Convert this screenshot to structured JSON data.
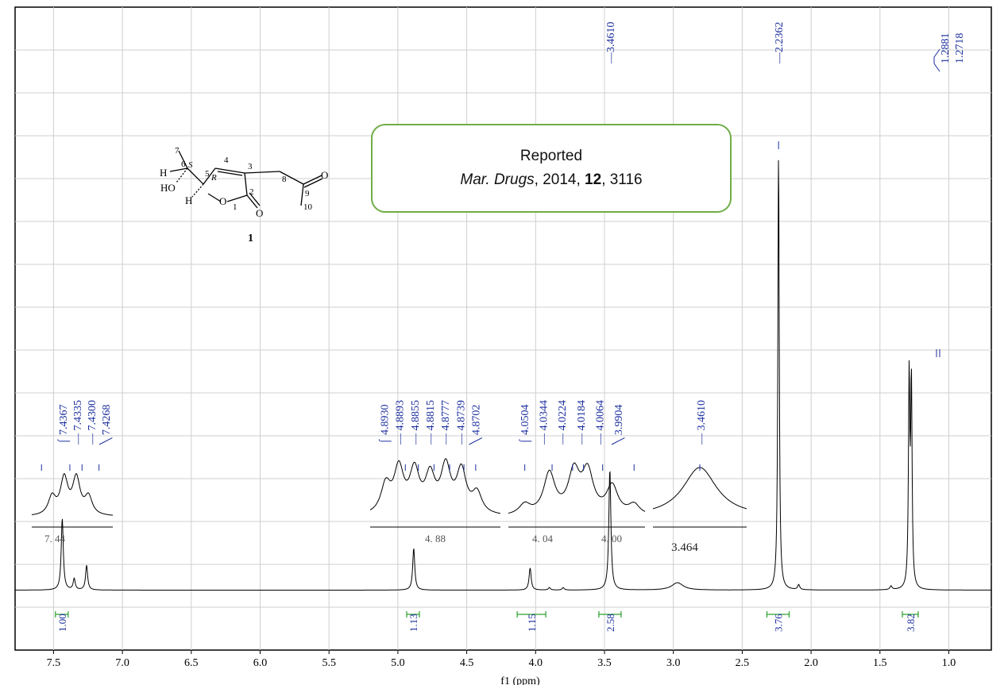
{
  "chart_data": {
    "type": "line",
    "xlabel": "f1 (ppm)",
    "x_axis_reversed": true,
    "xlim": [
      7.76,
      0.73
    ],
    "x_ticks": [
      "7.5",
      "7.0",
      "6.5",
      "6.0",
      "5.5",
      "5.0",
      "4.5",
      "4.0",
      "3.5",
      "3.0",
      "2.5",
      "2.0",
      "1.5",
      "1.0"
    ],
    "grid": true,
    "series": [
      {
        "peaks": [
          {
            "ppm": 7.4367,
            "height": 0.58
          },
          {
            "ppm": 7.35,
            "height": 0.09
          },
          {
            "ppm": 7.26,
            "height": 0.2
          },
          {
            "ppm": 4.885,
            "height": 0.34
          },
          {
            "ppm": 4.04,
            "height": 0.18
          },
          {
            "ppm": 3.9,
            "height": 0.02
          },
          {
            "ppm": 3.8,
            "height": 0.02
          },
          {
            "ppm": 3.461,
            "height": 0.98
          },
          {
            "ppm": 2.97,
            "height": 0.06
          },
          {
            "ppm": 2.2362,
            "height": 3.56
          },
          {
            "ppm": 2.09,
            "height": 0.04
          },
          {
            "ppm": 1.42,
            "height": 0.03
          },
          {
            "ppm": 1.2881,
            "height": 1.68
          },
          {
            "ppm": 1.2718,
            "height": 1.64
          }
        ]
      }
    ],
    "top_peak_labels": [
      {
        "ppm": 3.461,
        "label": "3.4610"
      },
      {
        "ppm": 2.2362,
        "label": "2.2362"
      },
      {
        "group": [
          "1.2881",
          "1.2718"
        ],
        "ppm": 1.28
      }
    ],
    "integrals": [
      {
        "ppm": 7.44,
        "value": "1.00"
      },
      {
        "ppm": 4.89,
        "value": "1.13"
      },
      {
        "ppm": 4.03,
        "value": "1.15"
      },
      {
        "ppm": 3.46,
        "value": "2.58"
      },
      {
        "ppm": 2.24,
        "value": "3.76"
      },
      {
        "ppm": 1.28,
        "value": "3.82"
      }
    ],
    "insets": [
      {
        "center_label": "7. 44",
        "labels": [
          "7.4367",
          "7.4335",
          "7.4300",
          "7.4268"
        ]
      },
      {
        "center_label": "4. 88",
        "labels": [
          "4.8930",
          "4.8893",
          "4.8855",
          "4.8815",
          "4.8777",
          "4.8739",
          "4.8702"
        ]
      },
      {
        "center_labels": [
          "4. 04",
          "4. 00"
        ],
        "labels": [
          "4.0504",
          "4.0344",
          "4.0224",
          "4.0184",
          "4.0064",
          "3.9904"
        ]
      },
      {
        "center_label": "3.464",
        "labels": [
          "3.4610"
        ]
      }
    ]
  },
  "structure": {
    "compound_number": "1",
    "atom_labels": [
      "7",
      "6",
      "S",
      "5",
      "R",
      "4",
      "3",
      "8",
      "9",
      "10",
      "2",
      "1"
    ],
    "substituents": [
      "H",
      "HO",
      "H",
      "O",
      "O",
      "O"
    ]
  },
  "reference": {
    "line1": "Reported",
    "journal": "Mar. Drugs",
    "year_sep": ", 2014, ",
    "volume": "12",
    "pages": ", 3116"
  },
  "colors": {
    "trace": "#000000",
    "peak_labels": "#1b2e9e",
    "integral_marks": "#2ca02c",
    "grid": "#cfcfcf",
    "ref_border": "#70ad47"
  }
}
